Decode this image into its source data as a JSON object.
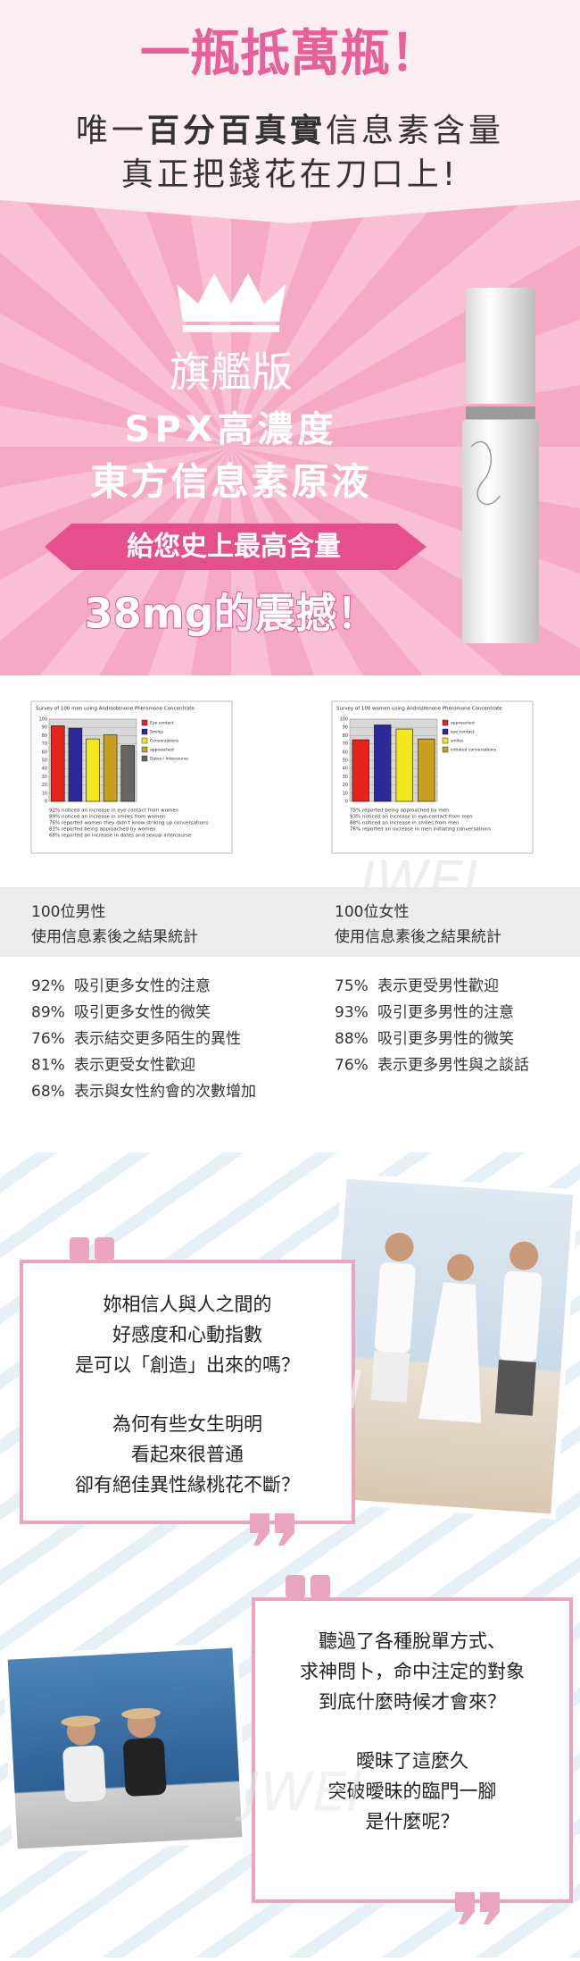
{
  "header": {
    "title": "一瓶抵萬瓶！",
    "subtitle_parts": [
      "唯一",
      "百分百真實",
      "信息素含量"
    ],
    "subtitle2": "真正把錢花在刀口上!"
  },
  "banner": {
    "edition": "旗艦版",
    "line1": "SPX高濃度",
    "line2": "東方信息素原液",
    "ribbon": "給您史上最高含量",
    "highlight": "38mg的震撼！"
  },
  "watermark": "JWEI",
  "surveys": [
    {
      "title": "Survey of 100 men using Androstenone Pheromone Concentrate",
      "ylim": [
        0,
        100
      ],
      "yticks": [
        0,
        10,
        20,
        30,
        40,
        50,
        60,
        70,
        80,
        90,
        100
      ],
      "series": [
        {
          "name": "Eye contact",
          "color": "#e8231c",
          "value": 92
        },
        {
          "name": "Smiles",
          "color": "#2a2a9a",
          "value": 89
        },
        {
          "name": "Conversations",
          "color": "#f2e81c",
          "value": 76
        },
        {
          "name": "approached",
          "color": "#c8a020",
          "value": 81
        },
        {
          "name": "Dates / Intercourse",
          "color": "#666666",
          "value": 68
        }
      ],
      "notes": [
        "92% noticed an increase in eye contact from women",
        "89% noticed an increase in smiles from women",
        "76% reported women they didn't know striking up conversations",
        "81% reported being approached by women",
        "68% reported an increase in dates and sexual intercourse"
      ]
    },
    {
      "title": "Survey of 100 women using Androstenone Pheromone Concentrate",
      "ylim": [
        0,
        100
      ],
      "yticks": [
        0,
        10,
        20,
        30,
        40,
        50,
        60,
        70,
        80,
        90,
        100
      ],
      "series": [
        {
          "name": "approached",
          "color": "#e8231c",
          "value": 75
        },
        {
          "name": "eye contact",
          "color": "#2a2a9a",
          "value": 93
        },
        {
          "name": "smiles",
          "color": "#f2e81c",
          "value": 88
        },
        {
          "name": "initiated conversations",
          "color": "#c8a020",
          "value": 76
        }
      ],
      "notes": [
        "75% reported being approached by men",
        "93% noticed an increase in eye-contact from men",
        "88% noticed an increase in smiles from men",
        "76% reported an increase in men initiating conversations"
      ]
    }
  ],
  "stats": [
    {
      "group": "100位男性",
      "caption": "使用信息素後之結果統計",
      "items": [
        {
          "percent": "92%",
          "text": "吸引更多女性的注意"
        },
        {
          "percent": "89%",
          "text": "吸引更多女性的微笑"
        },
        {
          "percent": "76%",
          "text": "表示結交更多陌生的異性"
        },
        {
          "percent": "81%",
          "text": "表示更受女性歡迎"
        },
        {
          "percent": "68%",
          "text": "表示與女性約會的次數增加"
        }
      ]
    },
    {
      "group": "100位女性",
      "caption": "使用信息素後之結果統計",
      "items": [
        {
          "percent": "75%",
          "text": "表示更受男性歡迎"
        },
        {
          "percent": "93%",
          "text": "吸引更多男性的注意"
        },
        {
          "percent": "88%",
          "text": "吸引更多男性的微笑"
        },
        {
          "percent": "76%",
          "text": "表示更多男性與之談話"
        }
      ]
    }
  ],
  "quotes": [
    {
      "paragraphs": [
        [
          "妳相信人與人之間的",
          "好感度和心動指數",
          "是可以「創造」出來的嗎？"
        ],
        [
          "為何有些女生明明",
          "看起來很普通",
          "卻有絕佳異性緣桃花不斷？"
        ]
      ]
    },
    {
      "paragraphs": [
        [
          "聽過了各種脫單方式、",
          "求神問卜，命中注定的對象",
          "到底什麼時候才會來？"
        ],
        [
          "曖昧了這麼久",
          "突破曖昧的臨門一腳",
          "是什麼呢？"
        ]
      ]
    }
  ]
}
